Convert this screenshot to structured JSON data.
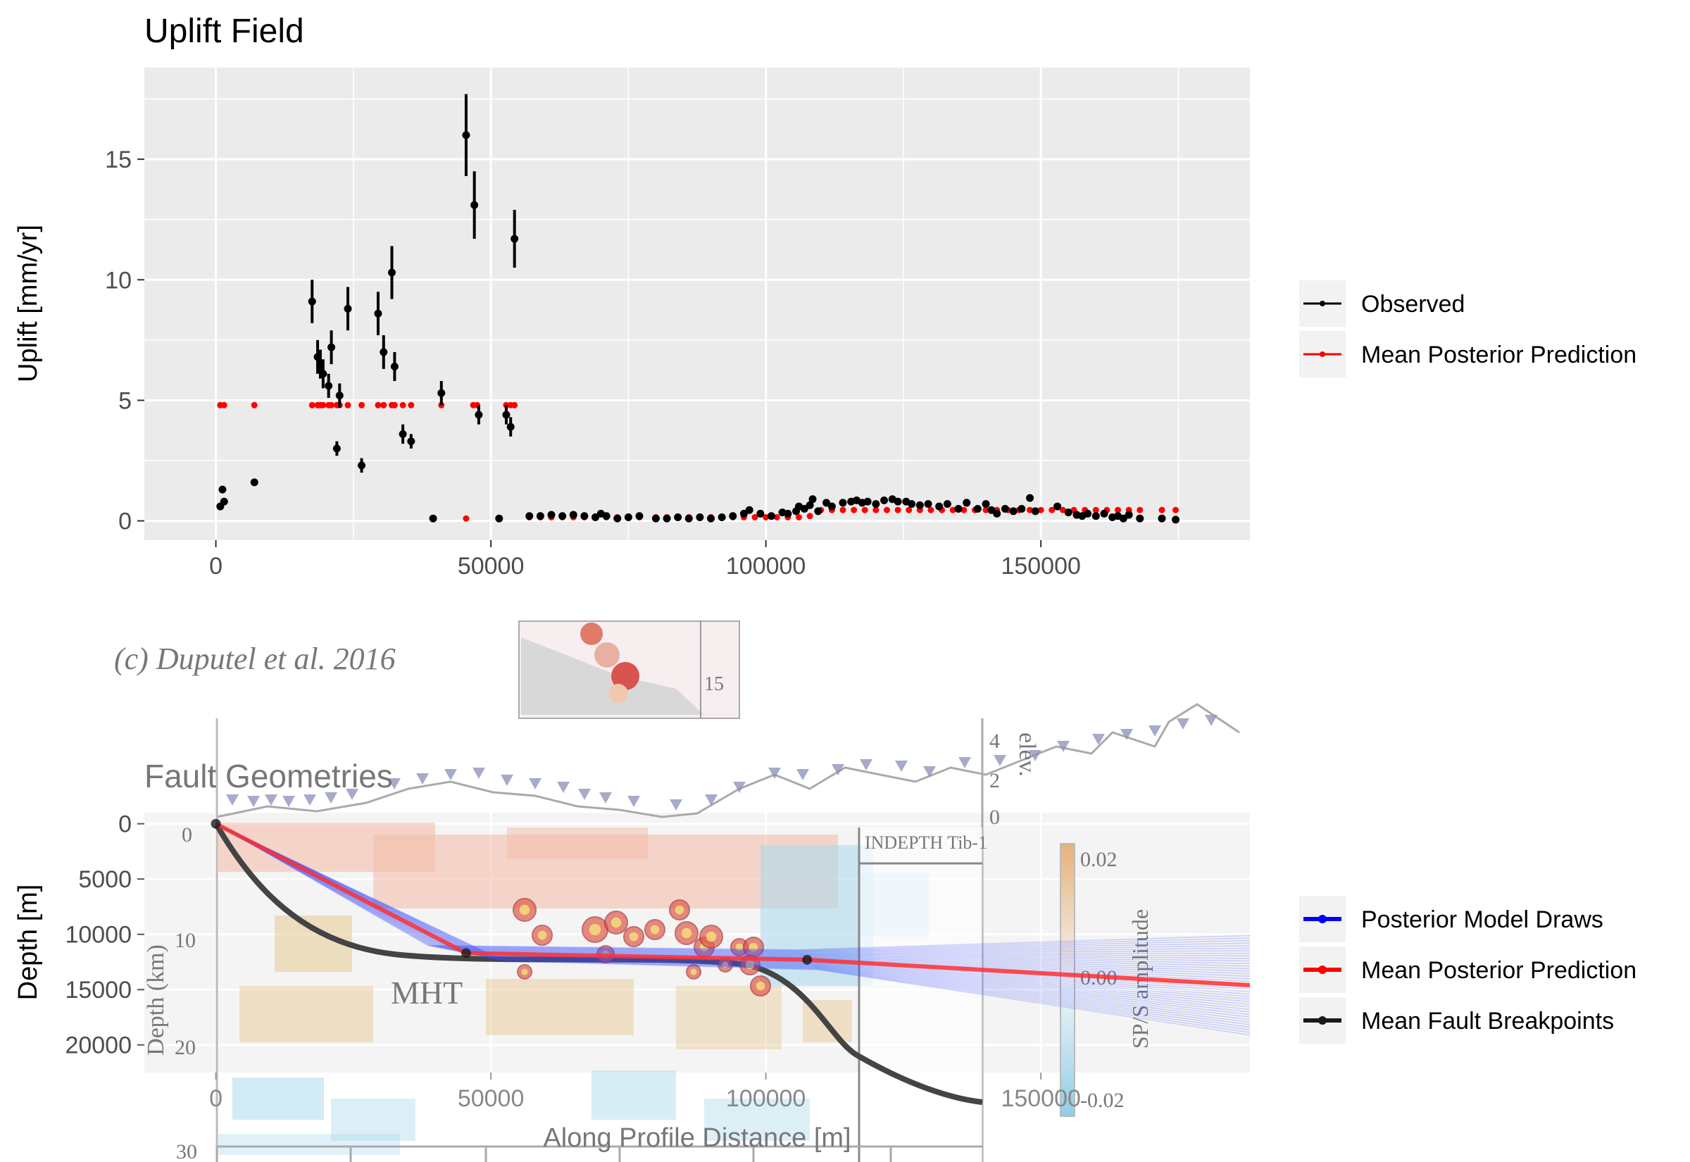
{
  "overlay_text": {
    "citation": "(c) Duputel et al. 2016",
    "depth_km_label": "Depth (km)",
    "depth_km_ticks": [
      "0",
      "10",
      "20",
      "30"
    ],
    "mht": "MHT",
    "indepth": "INDEPTH Tib-1",
    "elev_label": "elev.",
    "elev_ticks": [
      "4",
      "2",
      "0"
    ],
    "inset_tick": "15",
    "colorbar_label": "SP/S amplitude",
    "colorbar_ticks": [
      "0.02",
      "0.00",
      "-0.02"
    ]
  },
  "colors": {
    "panel_bg": "#ebebeb",
    "grid": "#ffffff",
    "observed": "#000000",
    "mean_prediction": "#ff0000",
    "posterior_draws": "#0000ff",
    "breakpoints": "#1a1a1a"
  },
  "chart_data": [
    {
      "type": "scatter",
      "title": "Uplift Field",
      "xlabel": "",
      "ylabel": "Uplift [mm/yr]",
      "xlim": [
        -13000,
        188000
      ],
      "ylim": [
        -0.8,
        18.8
      ],
      "xticks": [
        0,
        50000,
        100000,
        150000
      ],
      "yticks": [
        0,
        5,
        10,
        15
      ],
      "grid": true,
      "legend_position": "right",
      "legend": [
        {
          "label": "Observed",
          "color": "#000000"
        },
        {
          "label": "Mean Posterior Prediction",
          "color": "#ff0000"
        }
      ],
      "observed": [
        {
          "x": 800,
          "y": 0.6,
          "err": 0.15
        },
        {
          "x": 1200,
          "y": 1.3,
          "err": 0.15
        },
        {
          "x": 1500,
          "y": 0.8,
          "err": 0.15
        },
        {
          "x": 7000,
          "y": 1.6,
          "err": 0.15
        },
        {
          "x": 17500,
          "y": 9.1,
          "err": 0.9
        },
        {
          "x": 18500,
          "y": 6.8,
          "err": 0.7
        },
        {
          "x": 19000,
          "y": 6.5,
          "err": 0.6
        },
        {
          "x": 19500,
          "y": 6.1,
          "err": 0.6
        },
        {
          "x": 20500,
          "y": 5.6,
          "err": 0.5
        },
        {
          "x": 21000,
          "y": 7.2,
          "err": 0.7
        },
        {
          "x": 22000,
          "y": 3.0,
          "err": 0.3
        },
        {
          "x": 22500,
          "y": 5.2,
          "err": 0.5
        },
        {
          "x": 24000,
          "y": 8.8,
          "err": 0.9
        },
        {
          "x": 26500,
          "y": 2.3,
          "err": 0.3
        },
        {
          "x": 29500,
          "y": 8.6,
          "err": 0.9
        },
        {
          "x": 30500,
          "y": 7.0,
          "err": 0.7
        },
        {
          "x": 32000,
          "y": 10.3,
          "err": 1.1
        },
        {
          "x": 32500,
          "y": 6.4,
          "err": 0.6
        },
        {
          "x": 34000,
          "y": 3.6,
          "err": 0.4
        },
        {
          "x": 35500,
          "y": 3.3,
          "err": 0.3
        },
        {
          "x": 39500,
          "y": 0.1,
          "err": 0.1
        },
        {
          "x": 41000,
          "y": 5.3,
          "err": 0.5
        },
        {
          "x": 45500,
          "y": 16.0,
          "err": 1.7
        },
        {
          "x": 47000,
          "y": 13.1,
          "err": 1.4
        },
        {
          "x": 47800,
          "y": 4.4,
          "err": 0.4
        },
        {
          "x": 51500,
          "y": 0.1,
          "err": 0.1
        },
        {
          "x": 52800,
          "y": 4.4,
          "err": 0.4
        },
        {
          "x": 53600,
          "y": 3.9,
          "err": 0.4
        },
        {
          "x": 54300,
          "y": 11.7,
          "err": 1.2
        },
        {
          "x": 57000,
          "y": 0.2
        },
        {
          "x": 59000,
          "y": 0.2
        },
        {
          "x": 61000,
          "y": 0.25
        },
        {
          "x": 63000,
          "y": 0.2
        },
        {
          "x": 65000,
          "y": 0.25
        },
        {
          "x": 67000,
          "y": 0.2
        },
        {
          "x": 69000,
          "y": 0.15
        },
        {
          "x": 70000,
          "y": 0.3
        },
        {
          "x": 71000,
          "y": 0.2
        },
        {
          "x": 73000,
          "y": 0.1
        },
        {
          "x": 75000,
          "y": 0.15
        },
        {
          "x": 77000,
          "y": 0.2
        },
        {
          "x": 80000,
          "y": 0.1
        },
        {
          "x": 82000,
          "y": 0.1
        },
        {
          "x": 84000,
          "y": 0.15
        },
        {
          "x": 86000,
          "y": 0.1
        },
        {
          "x": 88000,
          "y": 0.15
        },
        {
          "x": 90000,
          "y": 0.1
        },
        {
          "x": 92000,
          "y": 0.15
        },
        {
          "x": 94000,
          "y": 0.2
        },
        {
          "x": 96000,
          "y": 0.3
        },
        {
          "x": 97000,
          "y": 0.45
        },
        {
          "x": 99000,
          "y": 0.3
        },
        {
          "x": 101000,
          "y": 0.2
        },
        {
          "x": 103000,
          "y": 0.35
        },
        {
          "x": 104000,
          "y": 0.3
        },
        {
          "x": 105500,
          "y": 0.4
        },
        {
          "x": 106000,
          "y": 0.6
        },
        {
          "x": 107000,
          "y": 0.5
        },
        {
          "x": 108000,
          "y": 0.65
        },
        {
          "x": 108500,
          "y": 0.9
        },
        {
          "x": 109500,
          "y": 0.4
        },
        {
          "x": 111000,
          "y": 0.75
        },
        {
          "x": 112000,
          "y": 0.6
        },
        {
          "x": 114000,
          "y": 0.75
        },
        {
          "x": 115500,
          "y": 0.8
        },
        {
          "x": 116500,
          "y": 0.85
        },
        {
          "x": 117500,
          "y": 0.75
        },
        {
          "x": 118500,
          "y": 0.8
        },
        {
          "x": 120000,
          "y": 0.7
        },
        {
          "x": 121500,
          "y": 0.85
        },
        {
          "x": 123000,
          "y": 0.9
        },
        {
          "x": 124000,
          "y": 0.8
        },
        {
          "x": 125500,
          "y": 0.8
        },
        {
          "x": 126500,
          "y": 0.7
        },
        {
          "x": 128000,
          "y": 0.65
        },
        {
          "x": 129500,
          "y": 0.7
        },
        {
          "x": 131500,
          "y": 0.6
        },
        {
          "x": 133000,
          "y": 0.7
        },
        {
          "x": 135000,
          "y": 0.5
        },
        {
          "x": 136500,
          "y": 0.75
        },
        {
          "x": 138500,
          "y": 0.5
        },
        {
          "x": 140000,
          "y": 0.7
        },
        {
          "x": 141000,
          "y": 0.45
        },
        {
          "x": 142000,
          "y": 0.3
        },
        {
          "x": 143500,
          "y": 0.5
        },
        {
          "x": 145000,
          "y": 0.4
        },
        {
          "x": 146500,
          "y": 0.5
        },
        {
          "x": 148000,
          "y": 0.95
        },
        {
          "x": 149000,
          "y": 0.4
        },
        {
          "x": 153000,
          "y": 0.6
        },
        {
          "x": 155000,
          "y": 0.35
        },
        {
          "x": 156500,
          "y": 0.25
        },
        {
          "x": 157500,
          "y": 0.2
        },
        {
          "x": 158500,
          "y": 0.3
        },
        {
          "x": 160000,
          "y": 0.2
        },
        {
          "x": 161500,
          "y": 0.3
        },
        {
          "x": 163000,
          "y": 0.15
        },
        {
          "x": 164000,
          "y": 0.2
        },
        {
          "x": 165000,
          "y": 0.1
        },
        {
          "x": 166000,
          "y": 0.25
        },
        {
          "x": 168000,
          "y": 0.1
        },
        {
          "x": 172000,
          "y": 0.1
        },
        {
          "x": 174500,
          "y": 0.05
        }
      ],
      "predicted_plateau": {
        "y": 4.8,
        "x": [
          800,
          1500,
          7000,
          17500,
          18500,
          19000,
          19500,
          20500,
          21000,
          22000,
          22500,
          24000,
          26500,
          29500,
          30500,
          32000,
          32500,
          34000,
          35500,
          41000,
          46800,
          47500,
          52800,
          53600,
          54300
        ]
      },
      "predicted_far_field": [
        {
          "x": 39500,
          "y": 0.1
        },
        {
          "x": 45500,
          "y": 0.1
        },
        {
          "x": 51500,
          "y": 0.1
        },
        {
          "x": 57000,
          "y": 0.15
        },
        {
          "x": 59000,
          "y": 0.15
        },
        {
          "x": 61000,
          "y": 0.15
        },
        {
          "x": 63000,
          "y": 0.15
        },
        {
          "x": 65000,
          "y": 0.15
        },
        {
          "x": 67000,
          "y": 0.15
        },
        {
          "x": 69000,
          "y": 0.15
        },
        {
          "x": 71000,
          "y": 0.15
        },
        {
          "x": 73000,
          "y": 0.15
        },
        {
          "x": 75000,
          "y": 0.15
        },
        {
          "x": 77000,
          "y": 0.15
        },
        {
          "x": 80000,
          "y": 0.15
        },
        {
          "x": 82000,
          "y": 0.15
        },
        {
          "x": 84000,
          "y": 0.15
        },
        {
          "x": 86000,
          "y": 0.15
        },
        {
          "x": 88000,
          "y": 0.15
        },
        {
          "x": 90000,
          "y": 0.15
        },
        {
          "x": 92000,
          "y": 0.15
        },
        {
          "x": 94000,
          "y": 0.15
        },
        {
          "x": 96000,
          "y": 0.15
        },
        {
          "x": 98000,
          "y": 0.15
        },
        {
          "x": 100000,
          "y": 0.15
        },
        {
          "x": 102000,
          "y": 0.15
        },
        {
          "x": 104000,
          "y": 0.15
        },
        {
          "x": 106000,
          "y": 0.15
        },
        {
          "x": 108000,
          "y": 0.2
        },
        {
          "x": 110000,
          "y": 0.45
        },
        {
          "x": 112000,
          "y": 0.45
        },
        {
          "x": 114000,
          "y": 0.45
        },
        {
          "x": 116000,
          "y": 0.45
        },
        {
          "x": 118000,
          "y": 0.45
        },
        {
          "x": 120000,
          "y": 0.45
        },
        {
          "x": 122000,
          "y": 0.45
        },
        {
          "x": 124000,
          "y": 0.45
        },
        {
          "x": 126000,
          "y": 0.45
        },
        {
          "x": 128000,
          "y": 0.45
        },
        {
          "x": 130000,
          "y": 0.45
        },
        {
          "x": 132000,
          "y": 0.45
        },
        {
          "x": 134000,
          "y": 0.45
        },
        {
          "x": 136000,
          "y": 0.45
        },
        {
          "x": 138000,
          "y": 0.45
        },
        {
          "x": 140000,
          "y": 0.45
        },
        {
          "x": 142000,
          "y": 0.45
        },
        {
          "x": 144000,
          "y": 0.45
        },
        {
          "x": 146000,
          "y": 0.45
        },
        {
          "x": 148000,
          "y": 0.45
        },
        {
          "x": 150000,
          "y": 0.45
        },
        {
          "x": 152000,
          "y": 0.45
        },
        {
          "x": 154000,
          "y": 0.45
        },
        {
          "x": 156000,
          "y": 0.45
        },
        {
          "x": 158000,
          "y": 0.45
        },
        {
          "x": 160000,
          "y": 0.45
        },
        {
          "x": 162000,
          "y": 0.45
        },
        {
          "x": 164000,
          "y": 0.45
        },
        {
          "x": 166000,
          "y": 0.45
        },
        {
          "x": 168000,
          "y": 0.45
        },
        {
          "x": 172000,
          "y": 0.45
        },
        {
          "x": 174500,
          "y": 0.45
        }
      ]
    },
    {
      "type": "line",
      "title": "Fault Geometries",
      "xlabel": "Along Profile Distance [m]",
      "ylabel": "Depth [m]",
      "xlim": [
        -13000,
        188000
      ],
      "ylim": [
        -1000,
        22500
      ],
      "y_reversed": true,
      "xticks": [
        0,
        50000,
        100000,
        150000
      ],
      "yticks": [
        0,
        5000,
        10000,
        15000,
        20000
      ],
      "legend_position": "right",
      "legend": [
        {
          "label": "Posterior Model Draws",
          "color": "#0000ff"
        },
        {
          "label": "Mean Posterior Prediction",
          "color": "#ff0000"
        },
        {
          "label": "Mean Fault Breakpoints",
          "color": "#1a1a1a"
        }
      ],
      "mean_prediction": [
        {
          "x": 0,
          "y": 0
        },
        {
          "x": 45500,
          "y": 11700
        },
        {
          "x": 107500,
          "y": 12300
        },
        {
          "x": 188000,
          "y": 14600
        }
      ],
      "breakpoints": [
        {
          "x": 0,
          "y": 0
        },
        {
          "x": 45500,
          "y": 11700
        },
        {
          "x": 107500,
          "y": 12300
        }
      ]
    }
  ]
}
